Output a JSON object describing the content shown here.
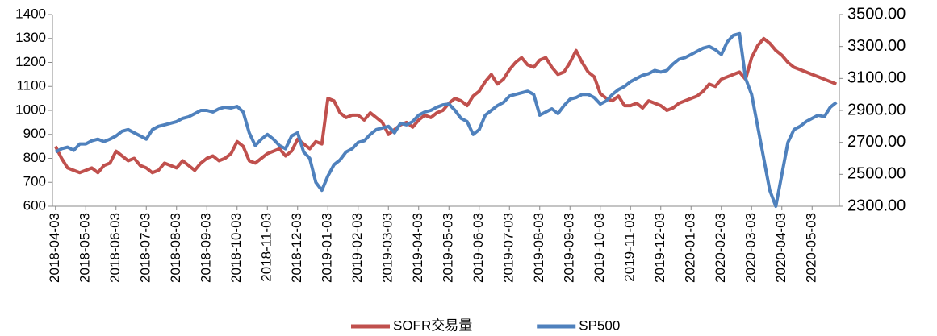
{
  "chart_data": {
    "type": "line",
    "categories": [
      "2018-04-03",
      null,
      null,
      null,
      null,
      "2018-05-03",
      null,
      null,
      null,
      null,
      "2018-06-03",
      null,
      null,
      null,
      null,
      "2018-07-03",
      null,
      null,
      null,
      null,
      "2018-08-03",
      null,
      null,
      null,
      null,
      "2018-09-03",
      null,
      null,
      null,
      null,
      "2018-10-03",
      null,
      null,
      null,
      null,
      "2018-11-03",
      null,
      null,
      null,
      null,
      "2018-12-03",
      null,
      null,
      null,
      null,
      "2019-01-03",
      null,
      null,
      null,
      null,
      "2019-02-03",
      null,
      null,
      null,
      null,
      "2019-03-03",
      null,
      null,
      null,
      null,
      "2019-04-03",
      null,
      null,
      null,
      null,
      "2019-05-03",
      null,
      null,
      null,
      null,
      "2019-06-03",
      null,
      null,
      null,
      null,
      "2019-07-03",
      null,
      null,
      null,
      null,
      "2019-08-03",
      null,
      null,
      null,
      null,
      "2019-09-03",
      null,
      null,
      null,
      null,
      "2019-10-03",
      null,
      null,
      null,
      null,
      "2019-11-03",
      null,
      null,
      null,
      null,
      "2019-12-03",
      null,
      null,
      null,
      null,
      "2020-01-03",
      null,
      null,
      null,
      null,
      "2020-02-03",
      null,
      null,
      null,
      null,
      "2020-03-03",
      null,
      null,
      null,
      null,
      "2020-04-03",
      null,
      null,
      null,
      null,
      "2020-05-03",
      null,
      null,
      null,
      null
    ],
    "series": [
      {
        "name": "SOFR交易量",
        "color": "#c0504d",
        "axis": "y",
        "values": [
          850,
          800,
          760,
          750,
          740,
          750,
          760,
          740,
          770,
          780,
          830,
          810,
          790,
          800,
          770,
          760,
          740,
          750,
          780,
          770,
          760,
          790,
          770,
          750,
          780,
          800,
          810,
          790,
          800,
          820,
          870,
          850,
          790,
          780,
          800,
          820,
          830,
          840,
          810,
          830,
          880,
          860,
          840,
          870,
          860,
          1050,
          1040,
          990,
          970,
          980,
          980,
          960,
          990,
          970,
          950,
          900,
          920,
          940,
          950,
          930,
          960,
          980,
          970,
          990,
          1000,
          1030,
          1050,
          1040,
          1020,
          1060,
          1080,
          1120,
          1150,
          1110,
          1130,
          1170,
          1200,
          1220,
          1190,
          1180,
          1210,
          1220,
          1180,
          1150,
          1160,
          1200,
          1250,
          1200,
          1160,
          1140,
          1070,
          1050,
          1040,
          1060,
          1020,
          1020,
          1030,
          1010,
          1040,
          1030,
          1020,
          1000,
          1010,
          1030,
          1040,
          1050,
          1060,
          1080,
          1110,
          1100,
          1130,
          1140,
          1150,
          1160,
          1130,
          1220,
          1270,
          1300,
          1280,
          1250,
          1230,
          1200,
          1180,
          1170,
          1160,
          1150,
          1140,
          1130,
          1120,
          1110
        ]
      },
      {
        "name": "SP500",
        "color": "#4f81bd",
        "axis": "y2",
        "values": [
          2640,
          2660,
          2670,
          2650,
          2690,
          2690,
          2710,
          2720,
          2705,
          2720,
          2740,
          2770,
          2780,
          2760,
          2740,
          2720,
          2780,
          2800,
          2810,
          2820,
          2830,
          2850,
          2860,
          2880,
          2900,
          2900,
          2890,
          2910,
          2920,
          2915,
          2925,
          2890,
          2760,
          2680,
          2720,
          2750,
          2720,
          2680,
          2660,
          2740,
          2760,
          2640,
          2600,
          2450,
          2400,
          2490,
          2560,
          2590,
          2640,
          2660,
          2700,
          2710,
          2750,
          2780,
          2790,
          2800,
          2760,
          2820,
          2810,
          2830,
          2870,
          2890,
          2900,
          2920,
          2935,
          2940,
          2900,
          2850,
          2830,
          2750,
          2780,
          2870,
          2900,
          2930,
          2950,
          2990,
          3000,
          3010,
          3020,
          3000,
          2870,
          2890,
          2910,
          2880,
          2930,
          2970,
          2980,
          3000,
          3000,
          2980,
          2940,
          2960,
          3000,
          3030,
          3050,
          3080,
          3100,
          3120,
          3130,
          3150,
          3140,
          3150,
          3190,
          3220,
          3230,
          3250,
          3270,
          3290,
          3300,
          3280,
          3250,
          3330,
          3370,
          3380,
          3100,
          3000,
          2800,
          2600,
          2400,
          2300,
          2500,
          2700,
          2780,
          2800,
          2830,
          2850,
          2870,
          2860,
          2920,
          2950
        ]
      }
    ],
    "ylim": [
      600,
      1400
    ],
    "yticks": [
      600,
      700,
      800,
      900,
      1000,
      1100,
      1200,
      1300,
      1400
    ],
    "y2lim": [
      2300,
      3500
    ],
    "y2ticks": [
      {
        "value": 2300,
        "label": "2300.00"
      },
      {
        "value": 2500,
        "label": "2500.00"
      },
      {
        "value": 2700,
        "label": "2700.00"
      },
      {
        "value": 2900,
        "label": "2900.00"
      },
      {
        "value": 3100,
        "label": "3100.00"
      },
      {
        "value": 3300,
        "label": "3300.00"
      },
      {
        "value": 3500,
        "label": "3500.00"
      }
    ],
    "legend": "bottom",
    "grid": false
  }
}
